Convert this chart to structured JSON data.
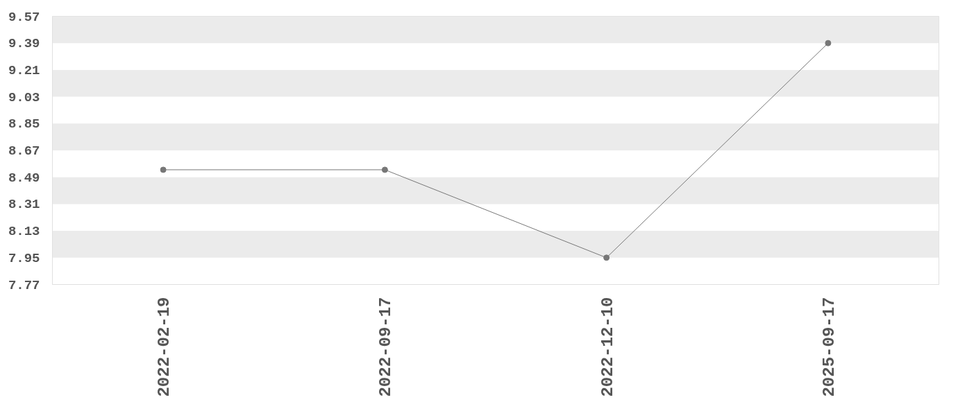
{
  "chart_data": {
    "type": "line",
    "categories": [
      "2022-02-19",
      "2022-09-17",
      "2022-12-10",
      "2025-09-17"
    ],
    "series": [
      {
        "color": "#777777",
        "values": [
          8.54,
          8.54,
          7.95,
          9.39
        ]
      }
    ],
    "ylim": [
      7.77,
      9.57
    ],
    "yticks": [
      7.77,
      7.95,
      8.13,
      8.31,
      8.49,
      8.67,
      8.85,
      9.03,
      9.21,
      9.39,
      9.57
    ],
    "bands": [
      {
        "axis": "y",
        "from": 7.95,
        "to": 8.13,
        "color": "#ebebeb"
      },
      {
        "axis": "y",
        "from": 8.31,
        "to": 8.49,
        "color": "#ebebeb"
      },
      {
        "axis": "y",
        "from": 8.67,
        "to": 8.85,
        "color": "#ebebeb"
      },
      {
        "axis": "y",
        "from": 9.03,
        "to": 9.21,
        "color": "#ebebeb"
      },
      {
        "axis": "y",
        "from": 9.39,
        "to": 9.57,
        "color": "#ebebeb"
      }
    ],
    "marker": "circle",
    "line_style": "solid"
  }
}
